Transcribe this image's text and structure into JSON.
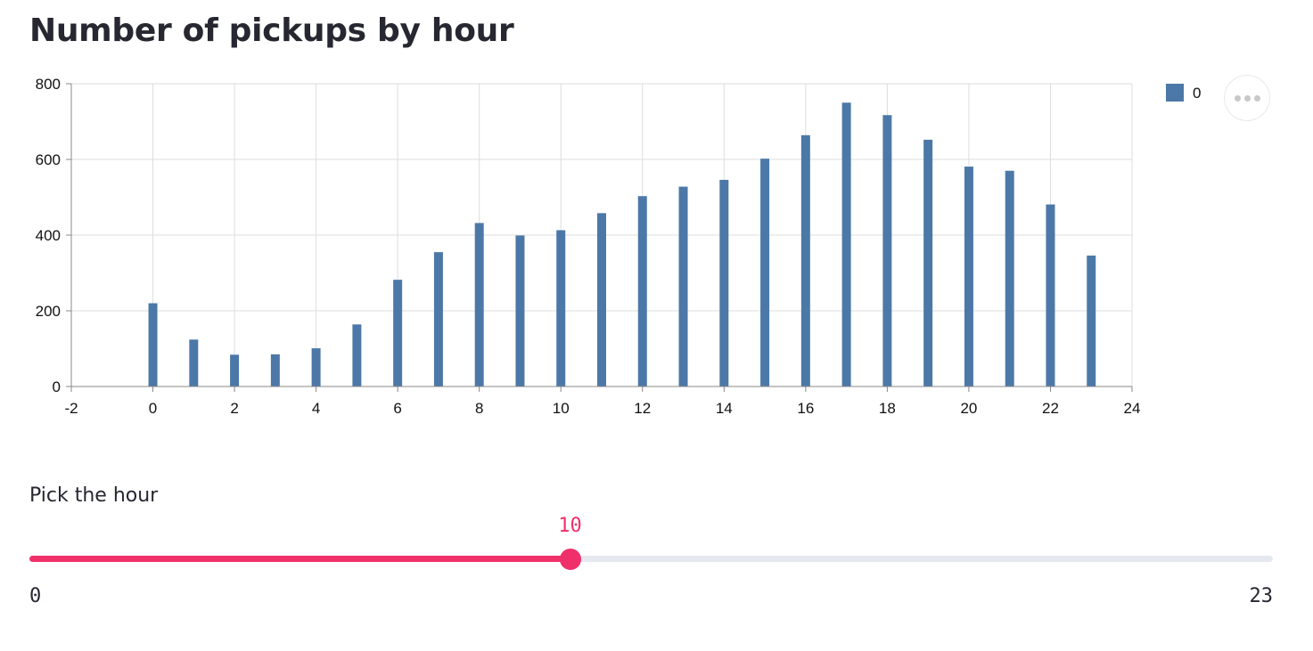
{
  "page": {
    "title": "Number of pickups by hour"
  },
  "chart_data": {
    "type": "bar",
    "title": "",
    "xlabel": "",
    "ylabel": "",
    "x": [
      0,
      1,
      2,
      3,
      4,
      5,
      6,
      7,
      8,
      9,
      10,
      11,
      12,
      13,
      14,
      15,
      16,
      17,
      18,
      19,
      20,
      21,
      22,
      23
    ],
    "series": [
      {
        "name": "0",
        "values": [
          220,
          124,
          84,
          85,
          101,
          164,
          282,
          355,
          432,
          399,
          413,
          458,
          503,
          528,
          546,
          602,
          664,
          750,
          717,
          652,
          581,
          570,
          481,
          346
        ],
        "color": "#4c78a8"
      }
    ],
    "xlim": [
      -2,
      24
    ],
    "ylim": [
      0,
      800
    ],
    "x_ticks": [
      "-2",
      "0",
      "2",
      "4",
      "6",
      "8",
      "10",
      "12",
      "14",
      "16",
      "18",
      "20",
      "22",
      "24"
    ],
    "y_ticks": [
      "0",
      "200",
      "400",
      "600",
      "800"
    ],
    "grid": true,
    "legend_position": "top-right"
  },
  "chart_menu": {
    "icon": "more-horizontal-icon"
  },
  "slider": {
    "label": "Pick the hour",
    "value": 10,
    "value_text": "10",
    "min": 0,
    "max": 23,
    "min_label": "0",
    "max_label": "23",
    "accent_color": "#f0306b",
    "track_color": "#e6e8ef"
  }
}
